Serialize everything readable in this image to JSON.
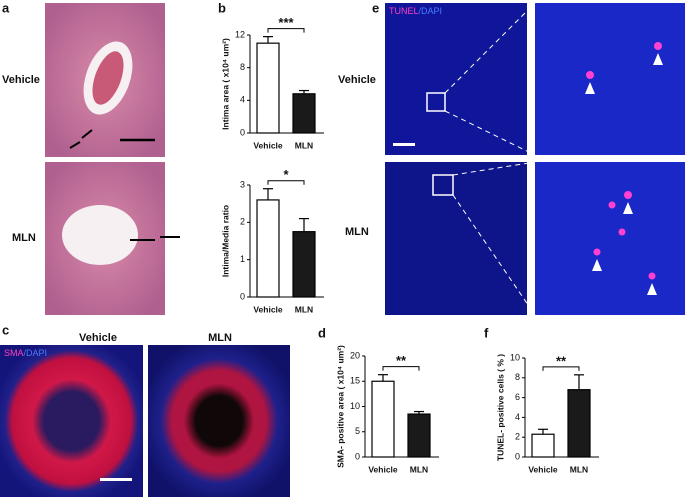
{
  "panel_labels": [
    "a",
    "b",
    "c",
    "d",
    "e",
    "f"
  ],
  "a": {
    "rows": [
      "Vehicle",
      "MLN"
    ]
  },
  "c": {
    "columns": [
      "Vehicle",
      "MLN"
    ],
    "stain": [
      "SMA",
      "/DAPI"
    ]
  },
  "e": {
    "rows": [
      "Vehicle",
      "MLN"
    ],
    "stain": [
      "TUNEL",
      "/DAPI"
    ]
  },
  "chart_data": [
    {
      "type": "bar",
      "ylabel": "Intima area ( x10⁴ um²)",
      "categories": [
        "Vehicle",
        "MLN"
      ],
      "values": [
        11,
        4.8
      ],
      "errors": [
        0.8,
        0.4
      ],
      "colors": [
        "#ffffff",
        "#1a1a1a"
      ],
      "ylim": [
        0,
        12
      ],
      "yticks": [
        0,
        4,
        8,
        12
      ],
      "significance": "***"
    },
    {
      "type": "bar",
      "ylabel": "Intima/Media ratio",
      "categories": [
        "Vehicle",
        "MLN"
      ],
      "values": [
        2.6,
        1.75
      ],
      "errors": [
        0.3,
        0.35
      ],
      "colors": [
        "#ffffff",
        "#1a1a1a"
      ],
      "ylim": [
        0,
        3
      ],
      "yticks": [
        0,
        1,
        2,
        3
      ],
      "significance": "*"
    },
    {
      "type": "bar",
      "ylabel": "SMA- positive area ( x10⁴ um²)",
      "categories": [
        "Vehicle",
        "MLN"
      ],
      "values": [
        15,
        8.5
      ],
      "errors": [
        1.3,
        0.5
      ],
      "colors": [
        "#ffffff",
        "#1a1a1a"
      ],
      "ylim": [
        0,
        20
      ],
      "yticks": [
        0,
        5,
        10,
        15,
        20
      ],
      "significance": "**"
    },
    {
      "type": "bar",
      "ylabel": "TUNEL- positive cells ( % )",
      "categories": [
        "Vehicle",
        "MLN"
      ],
      "values": [
        2.3,
        6.8
      ],
      "errors": [
        0.5,
        1.5
      ],
      "colors": [
        "#ffffff",
        "#1a1a1a"
      ],
      "ylim": [
        0,
        10
      ],
      "yticks": [
        0,
        2,
        4,
        6,
        8,
        10
      ],
      "significance": "**"
    }
  ]
}
